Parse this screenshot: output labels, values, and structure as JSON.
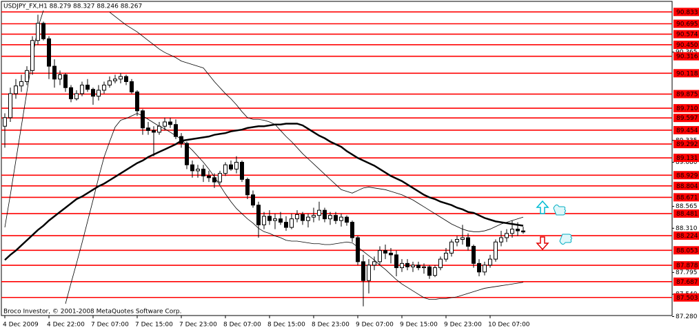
{
  "chart_data": {
    "type": "candlestick",
    "title": "USDJPY_FX,H1  88.279 88.327 88.246 88.267",
    "footer": "Broco Investor, © 2001-2008 MetaQuotes Software Corp.",
    "categories": [
      "4 Dec 2009",
      null,
      null,
      null,
      null,
      null,
      null,
      null,
      "4 Dec 22:00",
      null,
      null,
      null,
      null,
      null,
      null,
      null,
      "7 Dec 07:00",
      null,
      null,
      null,
      null,
      null,
      null,
      null,
      "7 Dec 15:00",
      null,
      null,
      null,
      null,
      null,
      null,
      null,
      "7 Dec 23:00",
      null,
      null,
      null,
      null,
      null,
      null,
      null,
      "8 Dec 07:00",
      null,
      null,
      null,
      null,
      null,
      null,
      null,
      "8 Dec 15:00",
      null,
      null,
      null,
      null,
      null,
      null,
      null,
      "8 Dec 23:00",
      null,
      null,
      null,
      null,
      null,
      null,
      null,
      "9 Dec 07:00",
      null,
      null,
      null,
      null,
      null,
      null,
      null,
      "9 Dec 15:00",
      null,
      null,
      null,
      null,
      null,
      null,
      null,
      "9 Dec 23:00",
      null,
      null,
      null,
      null,
      null,
      null,
      null,
      "10 Dec 07:00",
      null,
      null,
      null,
      null,
      null,
      null
    ],
    "open": [
      89.5,
      89.6,
      89.88,
      89.97,
      90.02,
      90.15,
      90.5,
      90.7,
      90.52,
      90.2,
      90.05,
      90.1,
      89.95,
      89.82,
      89.88,
      89.98,
      89.93,
      89.85,
      89.92,
      89.98,
      90.03,
      90.05,
      90.08,
      90.02,
      89.9,
      89.68,
      89.48,
      89.45,
      89.43,
      89.5,
      89.55,
      89.52,
      89.38,
      89.3,
      89.05,
      88.98,
      89.0,
      88.92,
      88.9,
      88.85,
      88.95,
      89.05,
      89.0,
      89.08,
      88.88,
      88.7,
      88.58,
      88.35,
      88.45,
      88.4,
      88.42,
      88.38,
      88.32,
      88.42,
      88.47,
      88.4,
      88.44,
      88.46,
      88.52,
      88.42,
      88.46,
      88.4,
      88.44,
      88.38,
      88.2,
      87.92,
      87.7,
      87.88,
      87.92,
      88.05,
      88.02,
      88.0,
      87.85,
      87.9,
      87.86,
      87.88,
      87.85,
      87.86,
      87.76,
      87.85,
      87.95,
      88.02,
      88.15,
      88.18,
      88.2,
      88.1,
      87.9,
      87.8,
      87.88,
      87.95,
      88.15,
      88.2,
      88.25,
      88.3,
      88.279
    ],
    "high": [
      89.65,
      89.95,
      90.05,
      90.1,
      90.2,
      90.55,
      90.8,
      90.72,
      90.55,
      90.28,
      90.15,
      90.12,
      89.98,
      89.92,
      90.02,
      90.05,
      89.95,
      89.98,
      90.02,
      90.08,
      90.1,
      90.12,
      90.1,
      90.05,
      89.92,
      89.7,
      89.55,
      89.5,
      89.55,
      89.6,
      89.6,
      89.58,
      89.42,
      89.32,
      89.1,
      89.05,
      89.05,
      88.98,
      88.95,
      88.98,
      89.08,
      89.1,
      89.15,
      89.1,
      88.9,
      88.75,
      88.62,
      88.5,
      88.52,
      88.48,
      88.5,
      88.45,
      88.48,
      88.52,
      88.5,
      88.48,
      88.55,
      88.62,
      88.55,
      88.5,
      88.5,
      88.48,
      88.46,
      88.4,
      88.22,
      88.0,
      87.95,
      87.98,
      88.1,
      88.12,
      88.08,
      88.05,
      87.95,
      87.95,
      87.92,
      87.92,
      87.9,
      87.88,
      87.88,
      87.98,
      88.08,
      88.18,
      88.22,
      88.35,
      88.25,
      88.12,
      87.95,
      87.92,
      88.0,
      88.18,
      88.28,
      88.3,
      88.4,
      88.38,
      88.327
    ],
    "low": [
      89.25,
      89.55,
      89.82,
      89.9,
      89.98,
      90.1,
      90.45,
      90.5,
      90.05,
      89.95,
      89.98,
      89.9,
      89.78,
      89.8,
      89.85,
      89.9,
      89.75,
      89.8,
      89.88,
      89.95,
      90.0,
      90.0,
      89.98,
      89.88,
      89.62,
      89.4,
      89.4,
      89.15,
      89.4,
      89.45,
      89.48,
      89.35,
      89.25,
      89.0,
      88.9,
      88.9,
      88.85,
      88.85,
      88.78,
      88.82,
      88.92,
      88.98,
      88.95,
      88.85,
      88.65,
      88.55,
      88.2,
      88.3,
      88.35,
      88.3,
      88.35,
      88.28,
      88.3,
      88.38,
      88.35,
      88.32,
      88.38,
      88.4,
      88.38,
      88.35,
      88.36,
      88.33,
      88.34,
      88.15,
      87.88,
      87.4,
      87.55,
      87.82,
      87.88,
      87.95,
      87.9,
      87.75,
      87.8,
      87.82,
      87.8,
      87.82,
      87.78,
      87.72,
      87.74,
      87.82,
      87.92,
      87.98,
      88.1,
      88.12,
      88.05,
      87.85,
      87.75,
      87.76,
      87.85,
      87.92,
      88.1,
      88.15,
      88.2,
      88.22,
      88.246
    ],
    "close": [
      89.6,
      89.88,
      89.97,
      90.02,
      90.15,
      90.5,
      90.7,
      90.52,
      90.2,
      90.05,
      90.1,
      89.95,
      89.82,
      89.88,
      89.98,
      89.93,
      89.85,
      89.92,
      89.98,
      90.03,
      90.05,
      90.08,
      90.02,
      89.9,
      89.68,
      89.48,
      89.45,
      89.43,
      89.5,
      89.55,
      89.52,
      89.38,
      89.3,
      89.05,
      88.98,
      89.0,
      88.92,
      88.9,
      88.85,
      88.95,
      89.05,
      89.0,
      89.08,
      88.88,
      88.7,
      88.58,
      88.35,
      88.45,
      88.4,
      88.42,
      88.38,
      88.32,
      88.42,
      88.47,
      88.4,
      88.44,
      88.46,
      88.52,
      88.42,
      88.46,
      88.4,
      88.44,
      88.38,
      88.2,
      87.92,
      87.7,
      87.88,
      87.92,
      88.05,
      88.02,
      88.0,
      87.85,
      87.9,
      87.86,
      87.88,
      87.85,
      87.86,
      87.76,
      87.85,
      87.95,
      88.02,
      88.15,
      88.18,
      88.2,
      88.1,
      87.9,
      87.8,
      87.88,
      87.95,
      88.15,
      88.2,
      88.25,
      88.3,
      88.28,
      88.267
    ],
    "candle_color": "#000000",
    "indicators": [
      {
        "color": "#000000",
        "width": 2.5,
        "values": [
          87.94,
          88.0,
          88.05,
          88.11,
          88.17,
          88.23,
          88.29,
          88.34,
          88.4,
          88.45,
          88.5,
          88.55,
          88.6,
          88.65,
          88.68,
          88.72,
          88.76,
          88.8,
          88.83,
          88.87,
          88.91,
          88.95,
          88.99,
          89.03,
          89.07,
          89.1,
          89.14,
          89.17,
          89.2,
          89.23,
          89.26,
          89.29,
          89.33,
          89.34,
          89.35,
          89.36,
          89.37,
          89.38,
          89.4,
          89.41,
          89.42,
          89.44,
          89.45,
          89.46,
          89.48,
          89.49,
          89.5,
          89.5,
          89.51,
          89.52,
          89.52,
          89.53,
          89.53,
          89.53,
          89.51,
          89.47,
          89.43,
          89.39,
          89.36,
          89.32,
          89.29,
          89.26,
          89.21,
          89.17,
          89.13,
          89.1,
          89.07,
          89.04,
          89.0,
          88.96,
          88.92,
          88.89,
          88.86,
          88.82,
          88.78,
          88.74,
          88.7,
          88.67,
          88.65,
          88.62,
          88.6,
          88.58,
          88.55,
          88.53,
          88.5,
          88.49,
          88.46,
          88.43,
          88.41,
          88.39,
          88.38,
          88.37,
          88.36,
          88.35,
          88.34
        ]
      },
      {
        "color": "#000000",
        "width": 0.8,
        "values": [
          88.32,
          88.7,
          89.1,
          89.5,
          89.9,
          90.3,
          90.65,
          90.85,
          null,
          null,
          null,
          null,
          null,
          null,
          null,
          null,
          null,
          null,
          null,
          90.83,
          90.78,
          90.73,
          90.68,
          90.64,
          90.6,
          90.55,
          90.5,
          90.45,
          90.4,
          90.36,
          90.33,
          90.3,
          90.26,
          90.24,
          90.22,
          90.2,
          90.18,
          90.1,
          90.02,
          89.95,
          89.88,
          89.82,
          89.75,
          89.67,
          89.6,
          89.58,
          89.58,
          89.57,
          89.55,
          89.52,
          89.45,
          89.38,
          89.32,
          89.25,
          89.18,
          89.12,
          89.06,
          89.0,
          88.94,
          88.88,
          88.82,
          88.76,
          88.74,
          88.72,
          88.75,
          88.78,
          88.79,
          88.78,
          88.77,
          88.76,
          88.74,
          88.72,
          88.7,
          88.67,
          88.64,
          88.6,
          88.56,
          88.52,
          88.48,
          88.44,
          88.4,
          88.36,
          88.33,
          88.3,
          88.28,
          88.27,
          88.27,
          88.28,
          88.3,
          88.33,
          88.36,
          88.38,
          88.4,
          88.42,
          88.44
        ]
      },
      {
        "color": "#000000",
        "width": 0.8,
        "values": [
          null,
          null,
          null,
          null,
          null,
          null,
          null,
          null,
          null,
          null,
          null,
          87.43,
          87.67,
          87.9,
          88.14,
          88.39,
          88.64,
          88.9,
          89.14,
          89.32,
          89.49,
          89.57,
          89.59,
          89.62,
          89.65,
          89.62,
          89.58,
          89.54,
          89.5,
          89.47,
          89.43,
          89.39,
          89.35,
          89.28,
          89.22,
          89.15,
          89.08,
          89.0,
          88.91,
          88.81,
          88.71,
          88.62,
          88.54,
          88.48,
          88.42,
          88.37,
          88.31,
          88.27,
          88.25,
          88.22,
          88.2,
          88.17,
          88.16,
          88.16,
          88.15,
          88.14,
          88.13,
          88.13,
          88.12,
          88.12,
          88.13,
          88.14,
          88.15,
          88.14,
          88.09,
          88.04,
          87.99,
          87.94,
          87.88,
          87.83,
          87.77,
          87.71,
          87.66,
          87.62,
          87.58,
          87.54,
          87.5,
          87.48,
          87.48,
          87.49,
          87.49,
          87.5,
          87.51,
          87.53,
          87.55,
          87.57,
          87.59,
          87.61,
          87.62,
          87.63,
          87.64,
          87.65,
          87.66,
          87.67,
          87.68
        ]
      }
    ],
    "levels": {
      "color": "#ff0000",
      "values": [
        90.833,
        90.695,
        90.574,
        {
          "value": 90.45,
          "label": "90.450"
        },
        90.316,
        90.118,
        89.875,
        {
          "value": 89.71,
          "label": "89.710"
        },
        89.597,
        89.454,
        89.292,
        89.131,
        88.929,
        88.804,
        88.671,
        88.481,
        88.224,
        88.053,
        87.878,
        87.687,
        87.503
      ]
    },
    "ylim": [
      87.26,
      90.94
    ],
    "yticks": [
      90.365,
      89.335,
      {
        "value": 89.08,
        "label": "89.080"
      },
      88.565,
      {
        "value": 88.31,
        "label": "88.310"
      },
      87.795,
      {
        "value": 87.54,
        "label": "87.540"
      },
      {
        "value": 87.28,
        "label": "87.280"
      }
    ]
  }
}
